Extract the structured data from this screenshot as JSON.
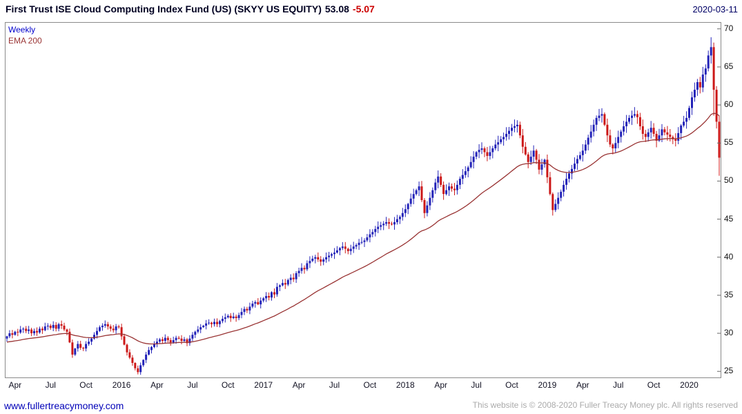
{
  "header": {
    "title": "First Trust ISE Cloud Computing Index Fund (US) (SKYY US EQUITY)",
    "last_price": "53.08",
    "change": "-5.07",
    "date": "2020-03-11"
  },
  "legend": {
    "timeframe": "Weekly",
    "ema_label": "EMA 200"
  },
  "footer": {
    "site": "www.fullertreacymoney.com",
    "copyright": "This website is © 2008-2020 Fuller Treacy Money plc. All rights reserved"
  },
  "colors": {
    "title_text": "#000022",
    "negative_change": "#cc0000",
    "date_text": "#000066",
    "link_text": "#0000b8",
    "muted_text": "#aaaaaa"
  },
  "chart_data": {
    "type": "candlestick",
    "title": "First Trust ISE Cloud Computing Index Fund (US) (SKYY US EQUITY)",
    "frequency_label": "Weekly",
    "overlay_label": "EMA 200",
    "last_date": "2020-03-11",
    "last_close": 53.08,
    "change": -5.07,
    "ylim": [
      24.2,
      70.8
    ],
    "y_ticks": [
      25,
      30,
      35,
      40,
      45,
      50,
      55,
      60,
      65,
      70
    ],
    "x_ticks": [
      {
        "label": "Apr",
        "week": 3
      },
      {
        "label": "Jul",
        "week": 16
      },
      {
        "label": "Oct",
        "week": 29
      },
      {
        "label": "2016",
        "week": 42
      },
      {
        "label": "Apr",
        "week": 55
      },
      {
        "label": "Jul",
        "week": 68
      },
      {
        "label": "Oct",
        "week": 81
      },
      {
        "label": "2017",
        "week": 94
      },
      {
        "label": "Apr",
        "week": 107
      },
      {
        "label": "Jul",
        "week": 120
      },
      {
        "label": "Oct",
        "week": 133
      },
      {
        "label": "2018",
        "week": 146
      },
      {
        "label": "Apr",
        "week": 159
      },
      {
        "label": "Jul",
        "week": 172
      },
      {
        "label": "Oct",
        "week": 185
      },
      {
        "label": "2019",
        "week": 198
      },
      {
        "label": "Apr",
        "week": 211
      },
      {
        "label": "Jul",
        "week": 224
      },
      {
        "label": "Oct",
        "week": 237
      },
      {
        "label": "2020",
        "week": 250
      }
    ],
    "weekly_closes": [
      29.6,
      30.0,
      29.8,
      30.2,
      30.1,
      30.5,
      30.6,
      30.3,
      30.5,
      30.0,
      30.3,
      30.1,
      30.6,
      30.4,
      30.9,
      31.0,
      30.7,
      31.1,
      30.6,
      31.2,
      31.0,
      30.5,
      30.2,
      28.8,
      27.2,
      28.0,
      28.6,
      28.1,
      28.0,
      28.6,
      28.9,
      29.3,
      29.8,
      30.3,
      30.8,
      31.0,
      31.2,
      30.9,
      30.6,
      30.4,
      30.9,
      30.8,
      29.6,
      28.5,
      27.5,
      26.8,
      26.1,
      25.4,
      24.9,
      25.8,
      26.5,
      27.2,
      27.8,
      28.2,
      28.6,
      28.9,
      29.2,
      29.0,
      29.4,
      29.1,
      28.8,
      29.1,
      29.4,
      29.3,
      29.0,
      29.2,
      28.7,
      29.3,
      29.8,
      30.2,
      30.5,
      30.8,
      31.0,
      31.3,
      31.4,
      31.2,
      31.5,
      31.2,
      31.6,
      31.9,
      32.1,
      32.3,
      32.0,
      32.2,
      32.0,
      32.4,
      32.8,
      33.2,
      33.0,
      33.5,
      33.9,
      34.1,
      33.8,
      34.3,
      34.6,
      34.9,
      34.7,
      35.4,
      35.1,
      36.1,
      36.3,
      36.6,
      36.4,
      37.0,
      37.3,
      37.1,
      37.9,
      38.2,
      38.6,
      38.4,
      39.2,
      39.5,
      39.8,
      40.0,
      39.7,
      39.4,
      39.7,
      40.0,
      40.2,
      40.4,
      40.6,
      40.9,
      41.2,
      41.4,
      41.1,
      40.8,
      41.1,
      41.4,
      41.6,
      41.9,
      42.0,
      42.2,
      42.6,
      43.0,
      43.3,
      43.7,
      44.0,
      44.2,
      44.4,
      44.6,
      44.4,
      44.3,
      44.6,
      45.0,
      45.3,
      45.8,
      46.3,
      47.0,
      47.7,
      48.3,
      48.8,
      49.3,
      47.5,
      45.8,
      46.8,
      47.8,
      48.8,
      49.8,
      50.6,
      49.5,
      48.3,
      48.8,
      49.3,
      49.0,
      48.8,
      49.5,
      50.3,
      50.8,
      51.3,
      51.8,
      52.5,
      53.2,
      53.8,
      54.1,
      54.3,
      53.8,
      53.3,
      53.8,
      54.3,
      54.8,
      55.1,
      55.5,
      55.8,
      56.2,
      56.6,
      57.0,
      57.2,
      57.4,
      56.0,
      54.5,
      53.5,
      52.5,
      53.2,
      54.0,
      52.8,
      51.5,
      52.2,
      52.8,
      50.5,
      48.3,
      46.2,
      47.0,
      47.8,
      48.6,
      49.5,
      50.3,
      51.0,
      51.6,
      52.3,
      52.9,
      53.4,
      54.0,
      54.8,
      55.7,
      56.5,
      57.4,
      58.3,
      58.6,
      58.8,
      57.4,
      56.0,
      54.8,
      54.3,
      55.0,
      55.8,
      56.5,
      57.2,
      57.8,
      58.3,
      58.6,
      58.8,
      58.4,
      57.2,
      56.2,
      55.8,
      56.4,
      57.0,
      56.2,
      55.3,
      56.0,
      56.8,
      56.4,
      56.1,
      55.8,
      55.5,
      55.3,
      56.3,
      57.3,
      57.8,
      58.3,
      59.6,
      61.0,
      62.0,
      63.0,
      62.3,
      64.0,
      64.8,
      66.5,
      67.6,
      62.0,
      57.8,
      53.08
    ],
    "ohlc_overrides": {
      "48": {
        "low": 24.6
      },
      "258": {
        "high": 68.9
      },
      "259": {
        "low": 58.6
      },
      "261": {
        "low": 50.7
      }
    },
    "ema_period_weeks": 40,
    "ema_start": 28.8,
    "colors": {
      "up": "#2323b8",
      "down": "#cc1818",
      "ema": "#993333"
    }
  }
}
